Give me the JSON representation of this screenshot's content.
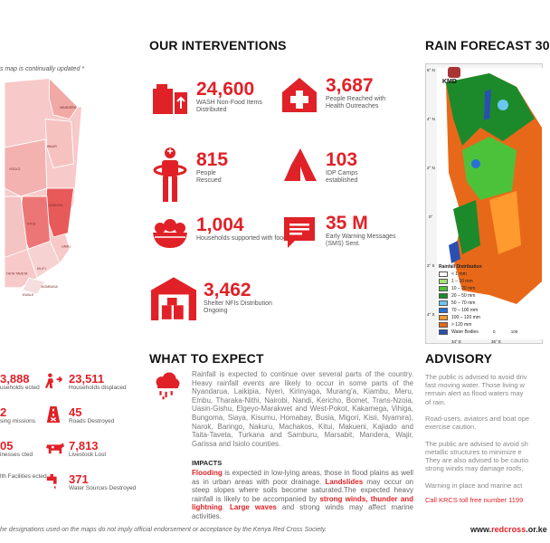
{
  "left_note": "s map is continually updated *",
  "left_map_labels": [
    "MANDERA",
    "WAJIR",
    "ISIOLO",
    "GARISSA",
    "KITUI",
    "LAMU",
    "KILIFI",
    "MOMBASA",
    "KWALE",
    "TAITA TAVETA"
  ],
  "interventions": {
    "title": "OUR INTERVENTIONS",
    "items": [
      {
        "value": "24,600",
        "label": "WASH Non-Food Items Distributed",
        "icon": "wash-nfi-icon"
      },
      {
        "value": "3,687",
        "label": "People Reached with Health Outreaches",
        "icon": "health-house-icon"
      },
      {
        "value": "815",
        "label": "People Rescued",
        "icon": "rescue-person-icon"
      },
      {
        "value": "103",
        "label": "IDP Camps established",
        "icon": "tent-icon"
      },
      {
        "value": "1,004",
        "label": "Households supported with food",
        "icon": "food-bowl-icon"
      },
      {
        "value": "35 M",
        "label": "Early Warning Messages (SMS) Sent.",
        "icon": "sms-message-icon"
      },
      {
        "value": "3,462",
        "label": "Shelter NFIs Distribution Ongoing",
        "icon": "shelter-icon"
      }
    ]
  },
  "rain_forecast": {
    "title": "RAIN FORECAST 30",
    "agency": "KMD",
    "lat_ticks": [
      "6° N",
      "4° N",
      "2° N",
      "0°",
      "2° S",
      "4° S"
    ],
    "lon_ticks": [
      "34° E",
      "36° E"
    ],
    "legend_title": "Rainfall Distribution",
    "legend": [
      {
        "label": "< 1 mm",
        "color": "#ffffff"
      },
      {
        "label": "1 – 10 mm",
        "color": "#a8e07a"
      },
      {
        "label": "10 – 20 mm",
        "color": "#4cc23a"
      },
      {
        "label": "20 – 50 mm",
        "color": "#1c8a2a"
      },
      {
        "label": "50 – 70 mm",
        "color": "#6bc6f0"
      },
      {
        "label": "70 – 100 mm",
        "color": "#2a6fd6"
      },
      {
        "label": "100 – 120 mm",
        "color": "#ff9a2e"
      },
      {
        "label": "> 120 mm",
        "color": "#e8681a"
      },
      {
        "label": "Water Bodies",
        "color": "#2a4fb0"
      }
    ],
    "scale_ticks": [
      "0",
      "105"
    ]
  },
  "impact_stats": [
    {
      "value": "3,888",
      "label": "useholds ected",
      "icon": ""
    },
    {
      "value": "23,511",
      "label": "Households displaced",
      "icon": "displaced-people-icon"
    },
    {
      "value": "2",
      "label": "sing missions",
      "icon": ""
    },
    {
      "value": "45",
      "label": "Roads Destroyed",
      "icon": "road-icon"
    },
    {
      "value": "05",
      "label": "inesses cted",
      "icon": ""
    },
    {
      "value": "7,813",
      "label": "Livestock Lost",
      "icon": "livestock-icon"
    },
    {
      "value": "",
      "label": "lth Facilities ected",
      "icon": ""
    },
    {
      "value": "371",
      "label": "Water Sources Destroyed",
      "icon": "water-tap-icon"
    }
  ],
  "expect": {
    "title": "WHAT TO EXPECT",
    "body": "Rainfall is expected to continue over several parts of the country. Heavy rainfall events are likely to occur in some parts of the Nyandarua, Laikipia, Nyeri, Kirinyaga, Murang'a, Kiambu, Meru, Embu, Tharaka-Nithi, Nairobi, Nandi, Kericho, Bomet, Trans-Nzoia, Uasin-Gishu, Elgeyo-Marakwet and West-Pokot, Kakamega, Vihiga, Bungoma, Siaya, Kisumu, Homabay, Busia, Migori, Kisii, Nyamira), Narok, Baringo, Nakuru, Machakos, Kitui, Makueni, Kajiado and Taita-Taveta, Turkana and Samburu, Marsabit, Mandera, Wajir, Garissa and Isiolo counties.",
    "impacts_title": "IMPACTS",
    "impacts_1a": "Flooding",
    "impacts_1b": " is expected in low-lying areas, those in flood plains as well as in urban areas with poor drainage. ",
    "impacts_1c": "Landslides",
    "impacts_1d": " may occur on steep slopes where soils become saturated.The expected heavy rainfall is likely to be accompanied by ",
    "impacts_1e": "strong winds, thunder and lightning",
    "impacts_1f": ". ",
    "impacts_1g": "Large waves",
    "impacts_1h": " and strong winds may affect marine activities."
  },
  "advisory": {
    "title": "ADVISORY",
    "lines": [
      "The public is advised to avoid driv",
      "fast moving water. Those living w",
      "remain alert as flood waters may",
      "of rain.",
      "",
      "Road-users, aviators and boat ope",
      "exercise caution.",
      "",
      "The public are advised to avoid sh",
      "metallic structures to minimize e",
      "They are also advised to be cautio",
      "strong winds may damage roofs,",
      "",
      "Warning in place and marine act"
    ],
    "hotline": "Call KRCS toll free number 1199"
  },
  "footer": {
    "disclaimer": "he designations used on the maps do not imply official endorsement or acceptance by the Kenya Red Cross Society.",
    "url_prefix": "www.",
    "url_brand": "redcross",
    "url_suffix": ".or.ke"
  },
  "colors": {
    "accent": "#e02127"
  }
}
